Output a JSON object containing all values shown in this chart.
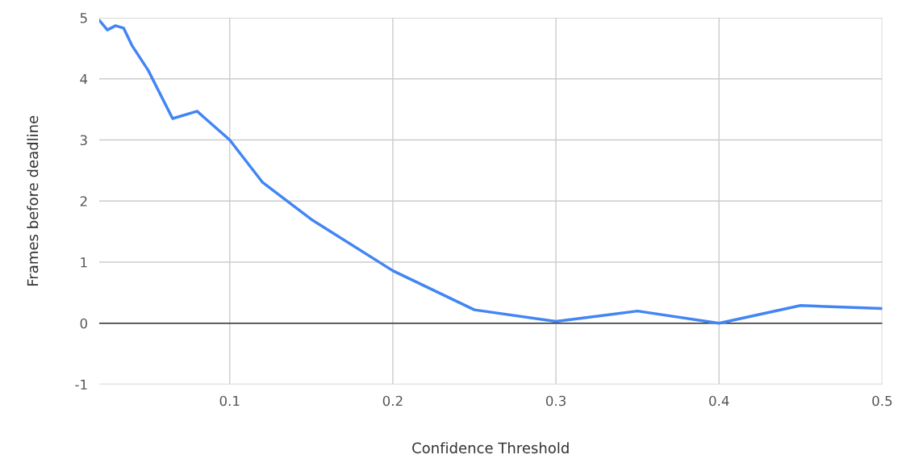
{
  "chart_data": {
    "type": "line",
    "xlabel": "Confidence Threshold",
    "ylabel": "Frames before deadline",
    "x": [
      0.02,
      0.025,
      0.03,
      0.035,
      0.04,
      0.05,
      0.065,
      0.08,
      0.1,
      0.12,
      0.15,
      0.2,
      0.25,
      0.3,
      0.35,
      0.4,
      0.45,
      0.5
    ],
    "series": [
      {
        "color": "#4285f4",
        "values": [
          4.96,
          4.8,
          4.87,
          4.83,
          4.55,
          4.14,
          3.35,
          3.47,
          3.0,
          2.31,
          1.7,
          0.86,
          0.22,
          0.03,
          0.2,
          0.0,
          0.29,
          0.24
        ]
      }
    ],
    "xlim": [
      0.02,
      0.5
    ],
    "xticks": [
      0.1,
      0.2,
      0.3,
      0.4,
      0.5
    ],
    "ylim": [
      -1,
      5
    ],
    "yticks": [
      -1,
      0,
      1,
      2,
      3,
      4,
      5
    ],
    "grid": true,
    "marker": "none",
    "line_style": "solid",
    "ref_lines": [
      {
        "axis": "y",
        "value": 0,
        "color": "#333333"
      }
    ]
  }
}
